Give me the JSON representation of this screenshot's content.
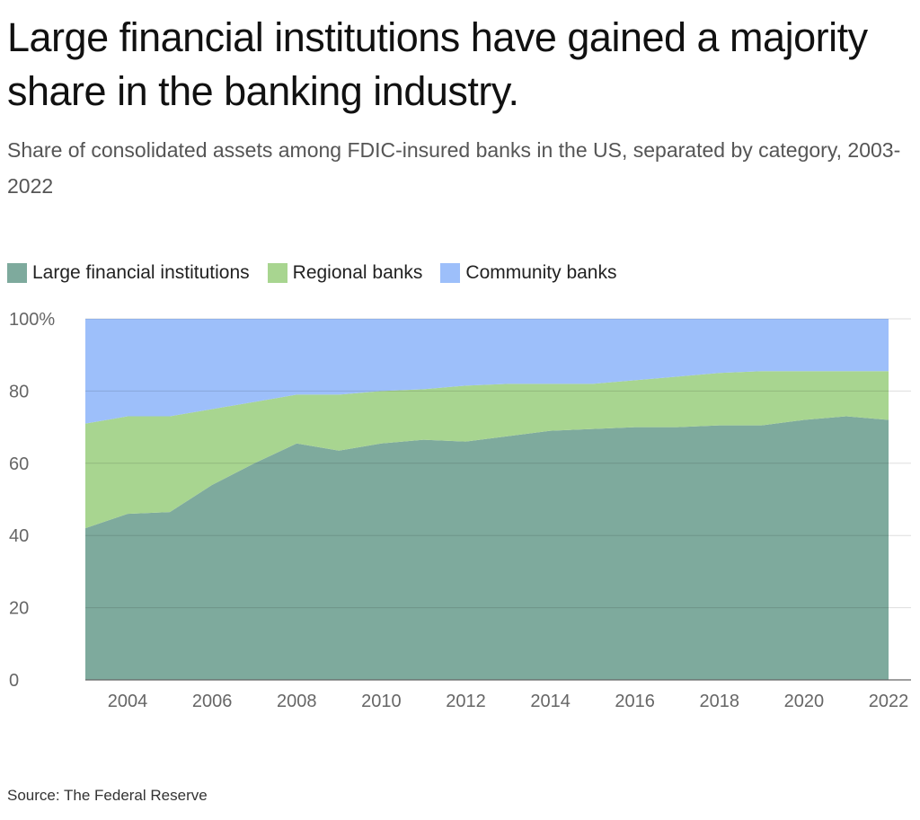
{
  "header": {
    "title": "Large financial institutions have gained a majority share in the banking industry.",
    "subtitle": "Share of consolidated assets among FDIC-insured banks in the US, separated by category, 2003-2022"
  },
  "footer": {
    "source": "Source: The Federal Reserve"
  },
  "chart_data": {
    "type": "area",
    "stacked": true,
    "title": "Large financial institutions have gained a majority share in the banking industry.",
    "subtitle": "Share of consolidated assets among FDIC-insured banks in the US, separated by category, 2003-2022",
    "x": [
      2003,
      2004,
      2005,
      2006,
      2007,
      2008,
      2009,
      2010,
      2011,
      2012,
      2013,
      2014,
      2015,
      2016,
      2017,
      2018,
      2019,
      2020,
      2021,
      2022
    ],
    "series": [
      {
        "name": "Large financial institutions",
        "color": "#7eaa9d",
        "values": [
          42,
          46,
          46.5,
          54,
          60,
          65.5,
          63.5,
          65.5,
          66.5,
          66,
          67.5,
          69,
          69.5,
          70,
          70,
          70.5,
          70.5,
          72,
          73,
          72
        ]
      },
      {
        "name": "Regional banks",
        "color": "#a8d590",
        "values": [
          29,
          27,
          26.5,
          21,
          17,
          13.5,
          15.5,
          14.5,
          14,
          15.5,
          14.5,
          13,
          12.5,
          13,
          14,
          14.5,
          15,
          13.5,
          12.5,
          13.5
        ]
      },
      {
        "name": "Community banks",
        "color": "#9dbffa",
        "values": [
          29,
          27,
          27,
          25,
          23,
          21,
          21,
          20,
          19.5,
          18.5,
          18,
          18,
          18,
          17,
          16,
          15,
          14.5,
          14.5,
          14.5,
          14.5
        ]
      }
    ],
    "x_ticks": [
      "2004",
      "2006",
      "2008",
      "2010",
      "2012",
      "2014",
      "2016",
      "2018",
      "2020",
      "2022"
    ],
    "y_ticks": [
      "0",
      "20",
      "40",
      "60",
      "80",
      "100%"
    ],
    "ylim": [
      0,
      100
    ],
    "xlim": [
      2003,
      2022
    ],
    "grid": true,
    "legend_position": "top-left",
    "source": "Source: The Federal Reserve"
  }
}
